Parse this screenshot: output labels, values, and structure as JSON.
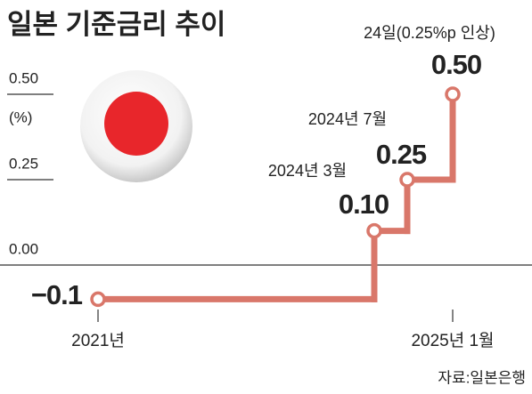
{
  "chart_data": {
    "type": "line",
    "title": "일본 기준금리 추이",
    "y_label": "(%)",
    "categories": [
      "2021년",
      "2024년 3월",
      "2024년 7월",
      "2025년 1월"
    ],
    "values": [
      -0.1,
      0.1,
      0.25,
      0.5
    ],
    "value_labels": [
      "−0.1",
      "0.10",
      "0.25",
      "0.50"
    ],
    "annotation": "24일(0.25%p 인상)",
    "color": "#d9776a",
    "ylim": [
      -0.2,
      0.55
    ],
    "yticks": [
      {
        "value": 0.5,
        "label": "0.50"
      },
      {
        "value": 0.25,
        "label": "0.25"
      },
      {
        "value": 0,
        "label": "0.00"
      }
    ],
    "source": "자료:일본은행"
  }
}
